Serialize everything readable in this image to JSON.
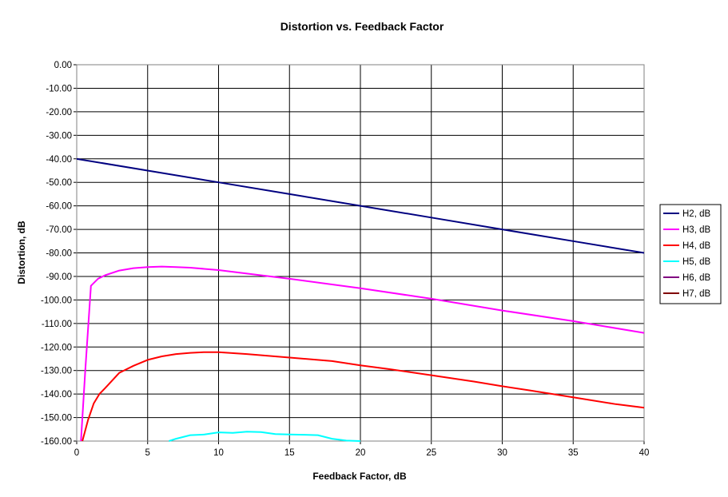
{
  "chart_data": {
    "type": "line",
    "title": "Distortion vs. Feedback Factor",
    "xlabel": "Feedback Factor, dB",
    "ylabel": "Distortion, dB",
    "xlim": [
      0,
      40
    ],
    "ylim": [
      -160,
      0
    ],
    "x_ticks": [
      "0",
      "5",
      "10",
      "15",
      "20",
      "25",
      "30",
      "35",
      "40"
    ],
    "y_ticks": [
      "0.00",
      "-10.00",
      "-20.00",
      "-30.00",
      "-40.00",
      "-50.00",
      "-60.00",
      "-70.00",
      "-80.00",
      "-90.00",
      "-100.00",
      "-110.00",
      "-120.00",
      "-130.00",
      "-140.00",
      "-150.00",
      "-160.00"
    ],
    "grid": true,
    "legend_position": "right",
    "series": [
      {
        "name": "H2, dB",
        "color": "#000080",
        "x": [
          0,
          5,
          10,
          15,
          20,
          25,
          30,
          35,
          40
        ],
        "y": [
          -40,
          -45,
          -50,
          -55,
          -60,
          -65,
          -70,
          -75,
          -80
        ]
      },
      {
        "name": "H3, dB",
        "color": "#FF00FF",
        "x": [
          0.3,
          0.6,
          1.0,
          1.5,
          2,
          3,
          4,
          5,
          6,
          7,
          8,
          10,
          12,
          15,
          20,
          25,
          30,
          35,
          40
        ],
        "y": [
          -160,
          -130,
          -94,
          -91,
          -89.5,
          -87.5,
          -86.5,
          -86,
          -85.8,
          -86,
          -86.3,
          -87.3,
          -88.8,
          -91,
          -95,
          -99.5,
          -104.5,
          -109,
          -114
        ]
      },
      {
        "name": "H4, dB",
        "color": "#FF0000",
        "x": [
          0.4,
          0.8,
          1.2,
          1.6,
          2,
          3,
          4,
          5,
          6,
          7,
          8,
          9,
          10,
          12,
          15,
          18,
          20,
          22,
          25,
          28,
          30,
          32,
          35,
          38,
          40
        ],
        "y": [
          -160,
          -151,
          -144,
          -140,
          -137.5,
          -131,
          -128,
          -125.5,
          -124,
          -123,
          -122.5,
          -122.2,
          -122.2,
          -123,
          -124.5,
          -126,
          -127.8,
          -129.4,
          -132,
          -134.7,
          -136.7,
          -138.5,
          -141.4,
          -144.3,
          -145.8
        ]
      },
      {
        "name": "H5, dB",
        "color": "#00FFFF",
        "x": [
          6.5,
          7,
          8,
          9,
          10,
          11,
          12,
          13,
          14,
          15,
          16,
          17,
          18,
          19,
          20
        ],
        "y": [
          -160,
          -159,
          -157.5,
          -157.2,
          -156.3,
          -156.5,
          -156,
          -156.2,
          -157,
          -157.2,
          -157.3,
          -157.5,
          -159,
          -159.8,
          -160
        ]
      },
      {
        "name": "H6, dB",
        "color": "#800080",
        "x": [],
        "y": []
      },
      {
        "name": "H7, dB",
        "color": "#800000",
        "x": [],
        "y": []
      }
    ]
  }
}
